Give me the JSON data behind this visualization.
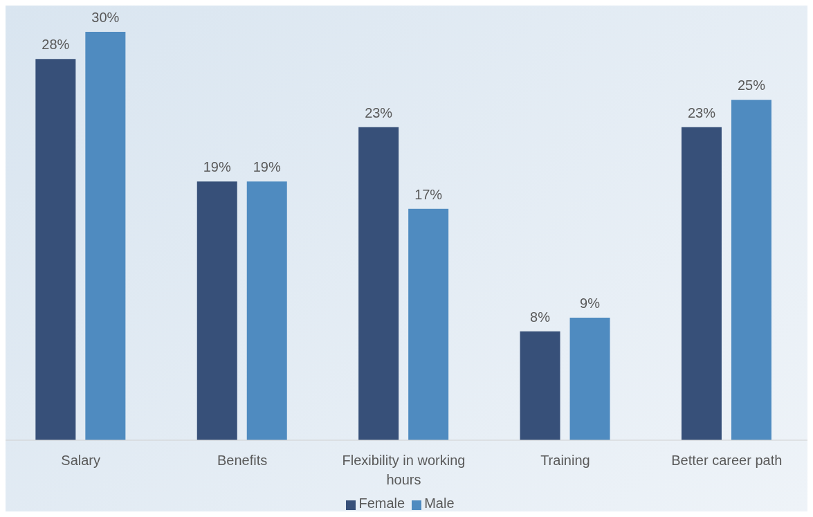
{
  "chart_data": {
    "type": "bar",
    "categories": [
      "Salary",
      "Benefits",
      "Flexibility in working hours",
      "Training",
      "Better career path"
    ],
    "series": [
      {
        "name": "Female",
        "color": "#375079",
        "values": [
          28,
          19,
          23,
          8,
          23
        ],
        "value_labels": [
          "28%",
          "19%",
          "23%",
          "8%",
          "23%"
        ]
      },
      {
        "name": "Male",
        "color": "#4f8bc0",
        "values": [
          30,
          19,
          17,
          9,
          25
        ],
        "value_labels": [
          "30%",
          "19%",
          "17%",
          "9%",
          "25%"
        ]
      }
    ],
    "legend": "bottom"
  }
}
